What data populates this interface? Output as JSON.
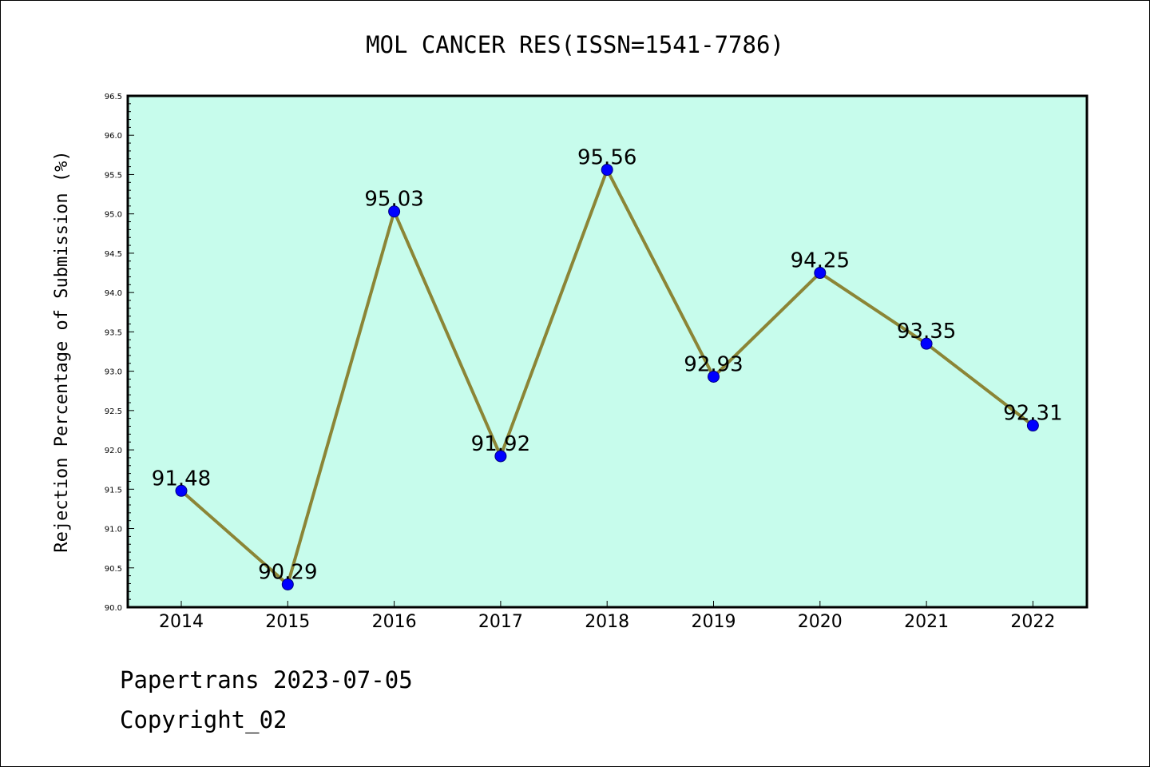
{
  "chart_data": {
    "type": "line",
    "title": "MOL CANCER RES(ISSN=1541-7786)",
    "xlabel": "",
    "ylabel": "Rejection Percentage of Submission (%)",
    "categories": [
      "2014",
      "2015",
      "2016",
      "2017",
      "2018",
      "2019",
      "2020",
      "2021",
      "2022"
    ],
    "series": [
      {
        "values": [
          91.48,
          90.29,
          95.03,
          91.92,
          95.56,
          92.93,
          94.25,
          93.35,
          92.31
        ],
        "data_labels": [
          "91.48",
          "90.29",
          "95.03",
          "91.92",
          "95.56",
          "92.93",
          "94.25",
          "93.35",
          "92.31"
        ]
      }
    ],
    "ylim": [
      90.0,
      96.5
    ],
    "yticks": [
      "90.0",
      "90.5",
      "91.0",
      "91.5",
      "92.0",
      "92.5",
      "93.0",
      "93.5",
      "94.0",
      "94.5",
      "95.0",
      "95.5",
      "96.0",
      "96.5"
    ],
    "grid": false,
    "legend": "none",
    "colors": {
      "plot_background": "#c7fcec",
      "line": "#8b8536",
      "marker_fill": "#0000ff",
      "marker_edge": "#000080"
    }
  },
  "footer": {
    "line1": "Papertrans 2023-07-05",
    "line2": "Copyright_02"
  }
}
